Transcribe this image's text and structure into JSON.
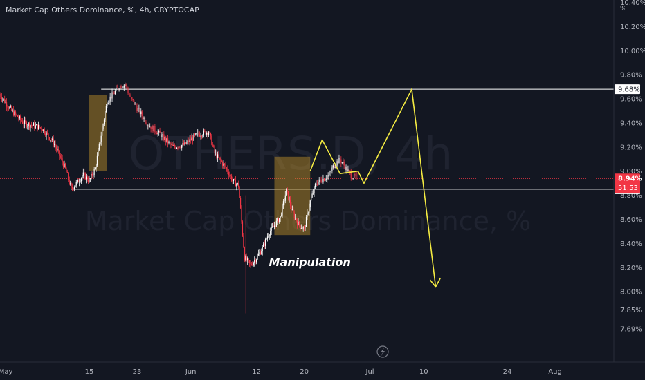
{
  "header": {
    "title": "Market Cap Others Dominance, %, 4h, CRYPTOCAP",
    "unit_symbol": "%"
  },
  "watermark": {
    "line1": "OTHERS.D, 4h",
    "line2": "Market Cap Others Dominance, %"
  },
  "colors": {
    "background": "#131722",
    "candle_up": "#ffffff",
    "candle_down": "#f23645",
    "zone": "#c8962a",
    "projection": "#f5ec42",
    "level": "#ffffff",
    "price_tag": "#f23645"
  },
  "icons": {
    "bottom_center": "lightning-icon"
  },
  "chart_data": {
    "type": "candlestick",
    "title": "Market Cap Others Dominance, %, 4h, CRYPTOCAP",
    "ylim": [
      7.62,
      10.52
    ],
    "y_ticks": [
      "10.40%",
      "10.20%",
      "10.00%",
      "9.80%",
      "9.60%",
      "9.40%",
      "9.20%",
      "9.00%",
      "8.80%",
      "8.60%",
      "8.40%",
      "8.20%",
      "8.00%",
      "7.85%",
      "7.69%"
    ],
    "y_tick_values": [
      10.4,
      10.2,
      10.0,
      9.8,
      9.6,
      9.4,
      9.2,
      9.0,
      8.8,
      8.6,
      8.4,
      8.2,
      8.0,
      7.85,
      7.69
    ],
    "x_range": [
      "2023-04-30",
      "2023-08-06"
    ],
    "x_ticks": [
      {
        "label": "May",
        "date": "2023-05-01"
      },
      {
        "label": "15",
        "date": "2023-05-15"
      },
      {
        "label": "23",
        "date": "2023-05-23"
      },
      {
        "label": "Jun",
        "date": "2023-06-01"
      },
      {
        "label": "12",
        "date": "2023-06-12"
      },
      {
        "label": "20",
        "date": "2023-06-20"
      },
      {
        "label": "Jul",
        "date": "2023-07-01"
      },
      {
        "label": "10",
        "date": "2023-07-10"
      },
      {
        "label": "24",
        "date": "2023-07-24"
      },
      {
        "label": "Aug",
        "date": "2023-08-01"
      }
    ],
    "price_path": [
      [
        "2023-04-30",
        9.64
      ],
      [
        "2023-05-02",
        9.5
      ],
      [
        "2023-05-04",
        9.4
      ],
      [
        "2023-05-07",
        9.36
      ],
      [
        "2023-05-09",
        9.24
      ],
      [
        "2023-05-11",
        9.02
      ],
      [
        "2023-05-12",
        8.85
      ],
      [
        "2023-05-14",
        8.97
      ],
      [
        "2023-05-15",
        8.92
      ],
      [
        "2023-05-16",
        9.02
      ],
      [
        "2023-05-17",
        9.3
      ],
      [
        "2023-05-18",
        9.58
      ],
      [
        "2023-05-20",
        9.7
      ],
      [
        "2023-05-21",
        9.72
      ],
      [
        "2023-05-22",
        9.6
      ],
      [
        "2023-05-24",
        9.45
      ],
      [
        "2023-05-25",
        9.38
      ],
      [
        "2023-05-27",
        9.3
      ],
      [
        "2023-05-29",
        9.2
      ],
      [
        "2023-05-31",
        9.22
      ],
      [
        "2023-06-02",
        9.3
      ],
      [
        "2023-06-04",
        9.33
      ],
      [
        "2023-06-05",
        9.15
      ],
      [
        "2023-06-07",
        9.02
      ],
      [
        "2023-06-08",
        8.92
      ],
      [
        "2023-06-09",
        8.88
      ],
      [
        "2023-06-10",
        8.28
      ],
      [
        "2023-06-11",
        8.22
      ],
      [
        "2023-06-12",
        8.28
      ],
      [
        "2023-06-13",
        8.36
      ],
      [
        "2023-06-14",
        8.48
      ],
      [
        "2023-06-16",
        8.62
      ],
      [
        "2023-06-17",
        8.84
      ],
      [
        "2023-06-18",
        8.66
      ],
      [
        "2023-06-19",
        8.56
      ],
      [
        "2023-06-20",
        8.52
      ],
      [
        "2023-06-21",
        8.75
      ],
      [
        "2023-06-22",
        8.9
      ],
      [
        "2023-06-24",
        8.96
      ],
      [
        "2023-06-25",
        9.05
      ],
      [
        "2023-06-26",
        9.1
      ],
      [
        "2023-06-27",
        9.02
      ],
      [
        "2023-06-28",
        8.96
      ],
      [
        "2023-06-29",
        8.94
      ]
    ],
    "wick_extremes": {
      "low": 7.82,
      "low_date": "2023-06-10"
    },
    "levels": [
      {
        "name": "resistance",
        "value": 9.68,
        "label": "9.68%"
      },
      {
        "name": "support",
        "value": 8.85,
        "label": "8.85%"
      }
    ],
    "current_price": {
      "value": 8.94,
      "label": "8.94%",
      "countdown": "51:53"
    },
    "zones": [
      {
        "from": "2023-05-15",
        "to": "2023-05-18",
        "top": 9.63,
        "bottom": 9.0
      },
      {
        "from": "2023-06-15",
        "to": "2023-06-21",
        "top": 9.12,
        "bottom": 8.47
      }
    ],
    "projection_path": [
      [
        "2023-06-21",
        9.0
      ],
      [
        "2023-06-23",
        9.26
      ],
      [
        "2023-06-26",
        8.98
      ],
      [
        "2023-06-29",
        9.0
      ],
      [
        "2023-06-30",
        8.9
      ],
      [
        "2023-07-08",
        9.68
      ],
      [
        "2023-07-12",
        8.04
      ]
    ],
    "annotations": [
      {
        "text": "Manipulation",
        "date": "2023-06-20",
        "value": 8.35
      }
    ]
  }
}
